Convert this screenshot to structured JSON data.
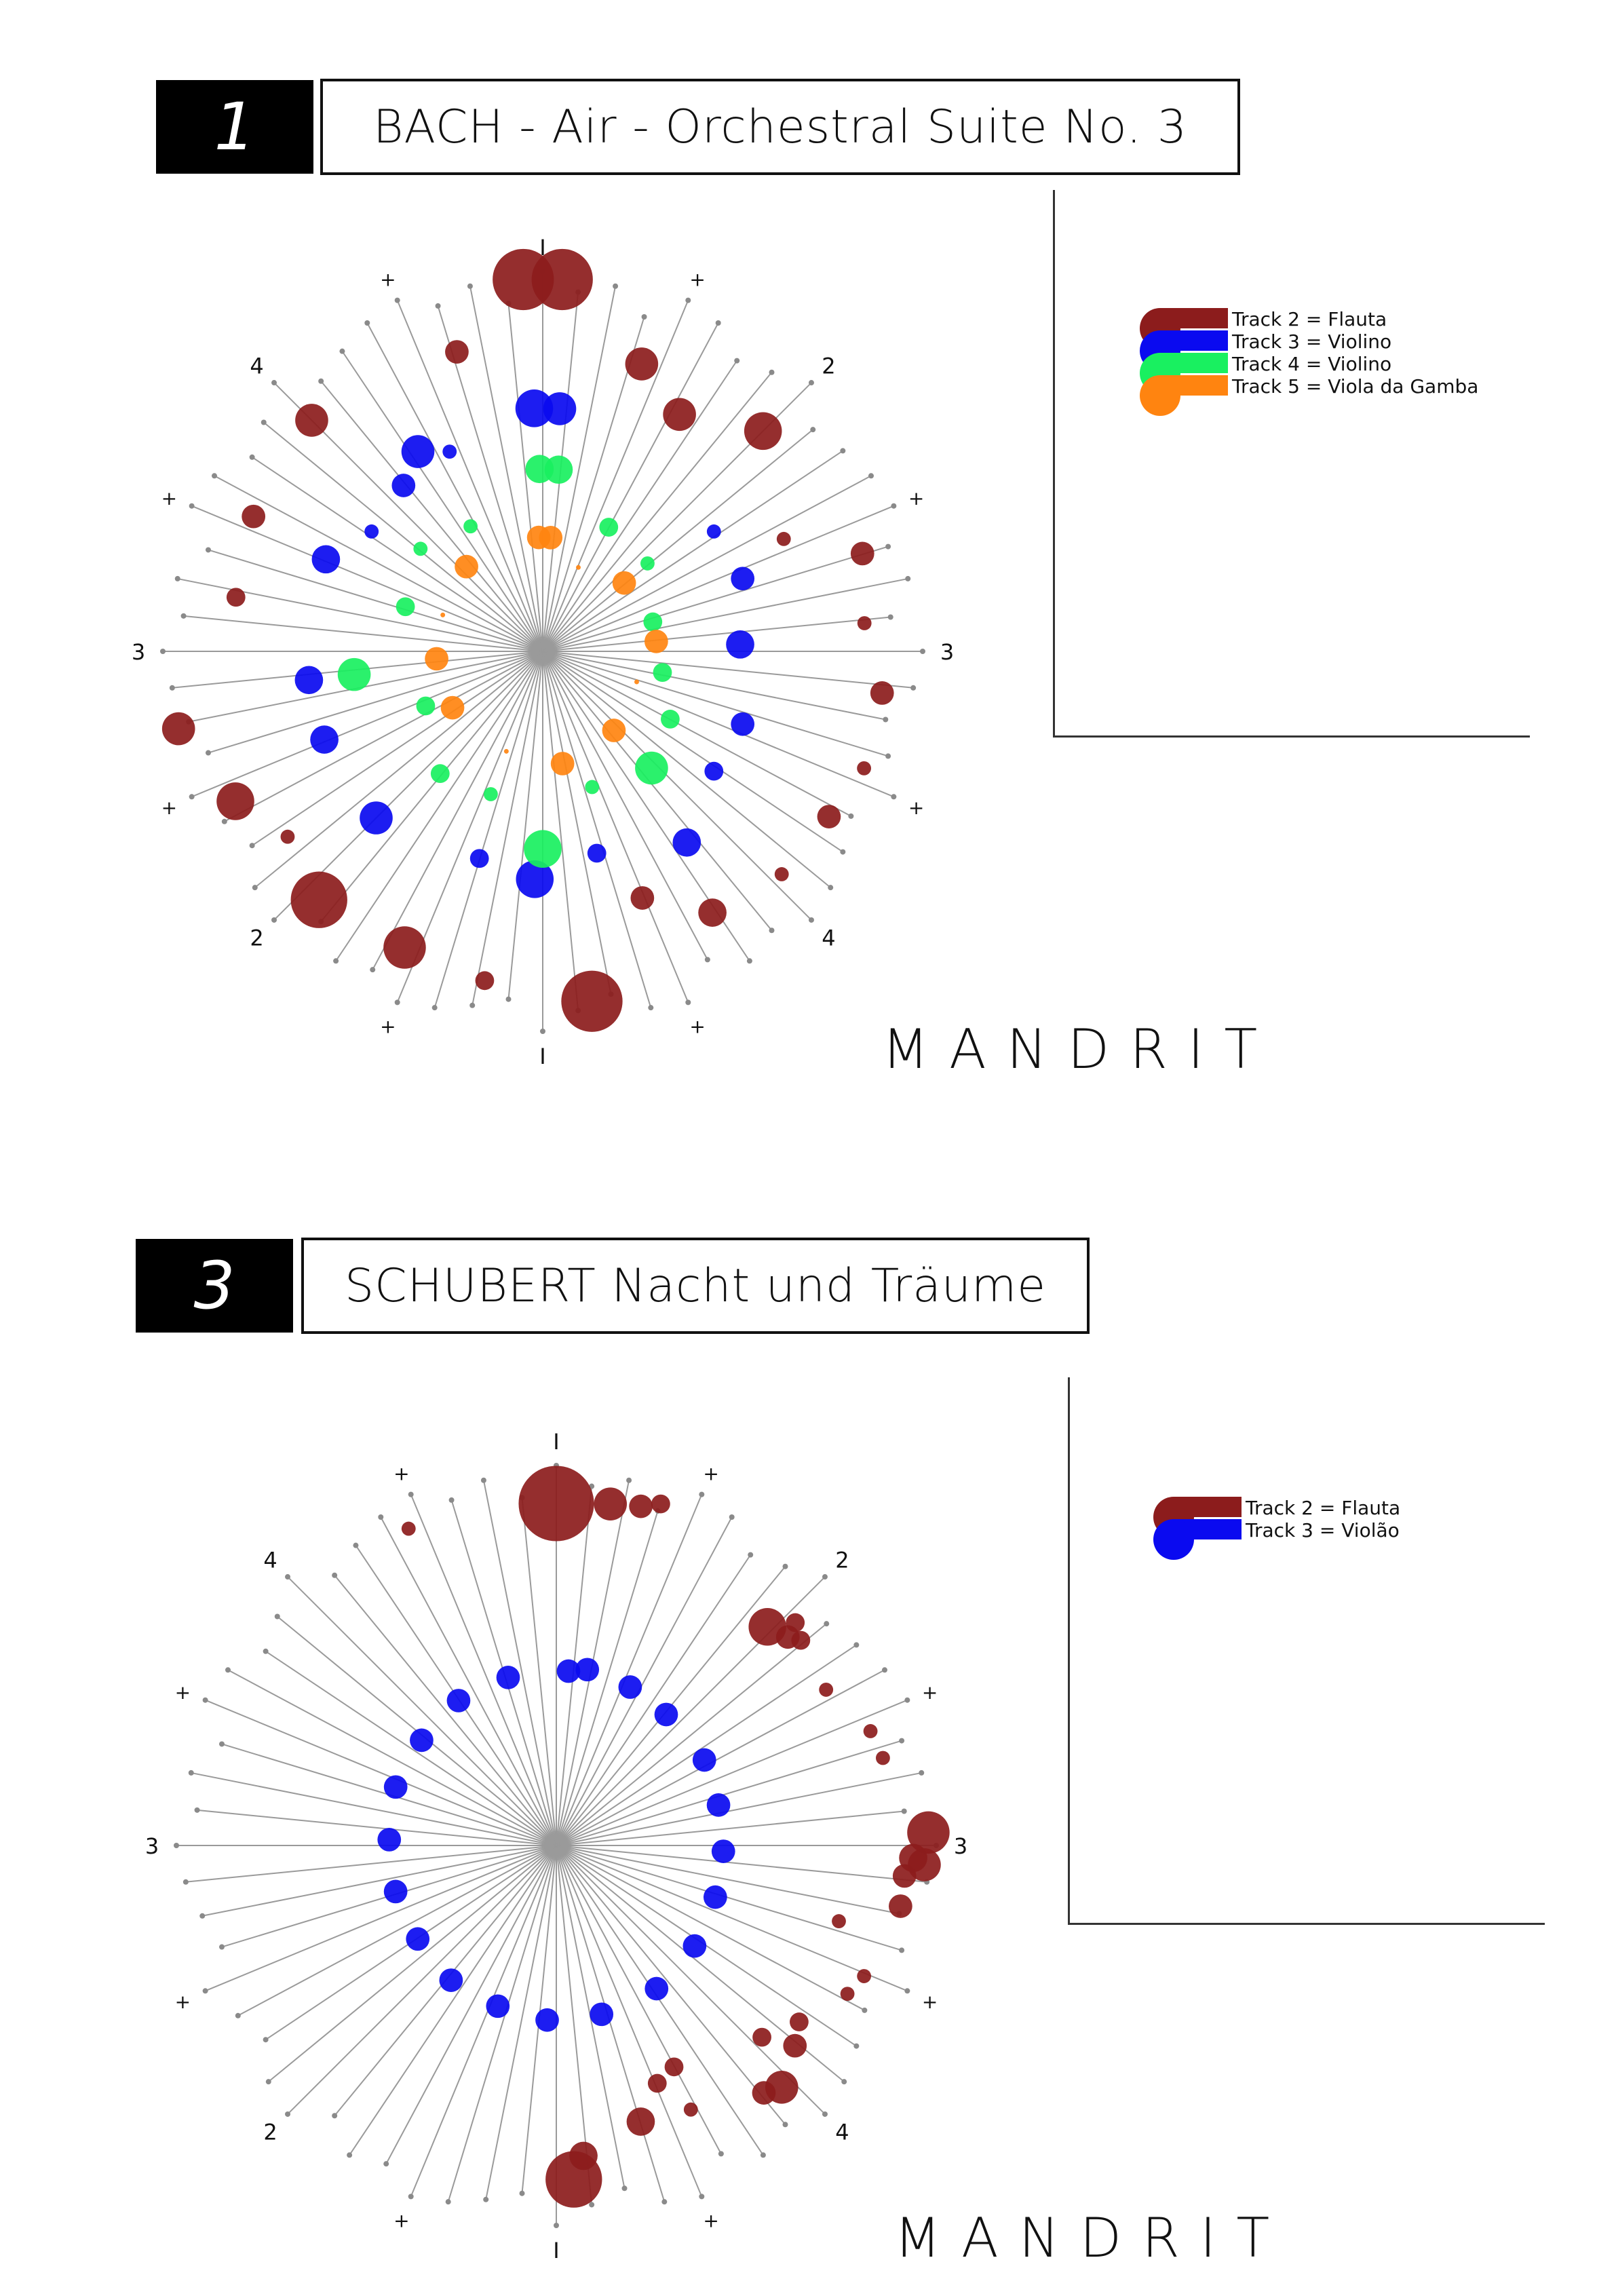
{
  "brand": "MANDRIT",
  "colors": {
    "flauta": "#8c1c1c",
    "violino1": "#0a0af0",
    "violino2": "#19f060",
    "gamba": "#ff8410",
    "spoke": "#9a9a9a",
    "dot": "#8a8a8a"
  },
  "charts": [
    {
      "number": "1",
      "title": "BACH - Air - Orchestral Suite No. 3",
      "beat_labels": [
        "I",
        "+",
        "2",
        "+",
        "3",
        "+",
        "4",
        "+",
        "I",
        "+",
        "2",
        "+",
        "3",
        "+",
        "4",
        "+"
      ],
      "legend": [
        {
          "label": "Track 2 = Flauta",
          "color": "#8c1c1c"
        },
        {
          "label": "Track 3 = Violino",
          "color": "#0a0af0"
        },
        {
          "label": "Track 4 = Violino",
          "color": "#19f060"
        },
        {
          "label": "Track 5 = Viola da Gamba",
          "color": "#ff8410"
        }
      ]
    },
    {
      "number": "3",
      "title": "SCHUBERT Nacht und Träume",
      "beat_labels": [
        "I",
        "+",
        "2",
        "+",
        "3",
        "+",
        "4",
        "+",
        "I",
        "+",
        "2",
        "+",
        "3",
        "+",
        "4",
        "+"
      ],
      "legend": [
        {
          "label": "Track 2 = Flauta",
          "color": "#8c1c1c"
        },
        {
          "label": "Track 3 = Violão",
          "color": "#0a0af0"
        }
      ]
    }
  ],
  "chart_data": [
    {
      "type": "scatter",
      "title": "BACH - Air - Orchestral Suite No. 3",
      "xlabel": "",
      "ylabel": "",
      "series": [
        {
          "name": "Track 2 = Flauta",
          "points": [
            [
              -3,
              0.98,
              0.13
            ],
            [
              3,
              0.98,
              0.13
            ],
            [
              -19,
              0.8,
              0.07
            ],
            [
              16,
              0.82,
              0.05
            ],
            [
              -30,
              0.72,
              0.07
            ],
            [
              -45,
              0.82,
              0.08
            ],
            [
              -65,
              0.7,
              0.03
            ],
            [
              -73,
              0.88,
              0.05
            ],
            [
              -85,
              0.85,
              0.03
            ],
            [
              -97,
              0.9,
              0.05
            ],
            [
              -110,
              0.9,
              0.03
            ],
            [
              -120,
              0.87,
              0.05
            ],
            [
              -133,
              0.86,
              0.03
            ],
            [
              -147,
              0.82,
              0.06
            ],
            [
              -158,
              0.7,
              0.05
            ],
            [
              -172,
              0.93,
              0.13
            ],
            [
              -190,
              0.88,
              0.04
            ],
            [
              -205,
              0.86,
              0.09
            ],
            [
              -222,
              0.88,
              0.12
            ],
            [
              -234,
              0.83,
              0.03
            ],
            [
              -244,
              0.9,
              0.08
            ],
            [
              -258,
              0.98,
              0.07
            ],
            [
              -280,
              0.82,
              0.04
            ],
            [
              -295,
              0.84,
              0.05
            ],
            [
              -315,
              0.86,
              0.07
            ]
          ]
        },
        {
          "name": "Track 3 = Violino",
          "points": [
            [
              -4,
              0.64,
              0.07
            ],
            [
              2,
              0.64,
              0.08
            ],
            [
              -55,
              0.55,
              0.03
            ],
            [
              -70,
              0.56,
              0.05
            ],
            [
              -88,
              0.52,
              0.06
            ],
            [
              -110,
              0.56,
              0.05
            ],
            [
              -125,
              0.55,
              0.04
            ],
            [
              -143,
              0.63,
              0.06
            ],
            [
              -165,
              0.55,
              0.04
            ],
            [
              -182,
              0.6,
              0.08
            ],
            [
              -197,
              0.57,
              0.04
            ],
            [
              -225,
              0.62,
              0.07
            ],
            [
              -248,
              0.62,
              0.06
            ],
            [
              -263,
              0.62,
              0.06
            ],
            [
              -293,
              0.62,
              0.06
            ],
            [
              -305,
              0.55,
              0.03
            ],
            [
              -320,
              0.57,
              0.05
            ],
            [
              -335,
              0.58,
              0.03
            ],
            [
              -328,
              0.62,
              0.07
            ]
          ]
        },
        {
          "name": "Track 4 = Violino",
          "points": [
            [
              -5,
              0.48,
              0.06
            ],
            [
              1,
              0.48,
              0.06
            ],
            [
              -28,
              0.37,
              0.04
            ],
            [
              -50,
              0.36,
              0.03
            ],
            [
              -75,
              0.3,
              0.04
            ],
            [
              -100,
              0.32,
              0.04
            ],
            [
              -118,
              0.38,
              0.04
            ],
            [
              -137,
              0.42,
              0.07
            ],
            [
              -160,
              0.38,
              0.03
            ],
            [
              -180,
              0.52,
              0.08
            ],
            [
              -200,
              0.4,
              0.03
            ],
            [
              -220,
              0.42,
              0.04
            ],
            [
              -245,
              0.34,
              0.04
            ],
            [
              -263,
              0.5,
              0.07
            ],
            [
              -288,
              0.38,
              0.04
            ],
            [
              -310,
              0.42,
              0.03
            ],
            [
              -330,
              0.38,
              0.03
            ]
          ]
        },
        {
          "name": "Track 5 = Viola da Gamba",
          "points": [
            [
              -4,
              0.3,
              0.05
            ],
            [
              2,
              0.3,
              0.05
            ],
            [
              -23,
              0.24,
              0.01
            ],
            [
              -50,
              0.28,
              0.05
            ],
            [
              -85,
              0.3,
              0.05
            ],
            [
              -108,
              0.26,
              0.01
            ],
            [
              -138,
              0.28,
              0.05
            ],
            [
              -170,
              0.3,
              0.05
            ],
            [
              -200,
              0.28,
              0.01
            ],
            [
              -238,
              0.28,
              0.05
            ],
            [
              -266,
              0.28,
              0.05
            ],
            [
              -290,
              0.28,
              0.01
            ],
            [
              -318,
              0.3,
              0.05
            ]
          ]
        }
      ]
    },
    {
      "type": "scatter",
      "title": "SCHUBERT Nacht und Träume",
      "xlabel": "",
      "ylabel": "",
      "series": [
        {
          "name": "Track 2 = Flauta",
          "points": [
            [
              0,
              0.9,
              0.16
            ],
            [
              -9,
              0.91,
              0.07
            ],
            [
              -14,
              0.92,
              0.05
            ],
            [
              -17,
              0.94,
              0.04
            ],
            [
              25,
              0.92,
              0.03
            ],
            [
              -44,
              0.8,
              0.08
            ],
            [
              -48,
              0.82,
              0.05
            ],
            [
              -60,
              0.82,
              0.03
            ],
            [
              -88,
              0.98,
              0.09
            ],
            [
              -93,
              0.97,
              0.07
            ],
            [
              -100,
              0.92,
              0.05
            ],
            [
              -113,
              0.88,
              0.03
            ],
            [
              -117,
              0.86,
              0.03
            ],
            [
              -137,
              0.87,
              0.07
            ],
            [
              -140,
              0.85,
              0.05
            ],
            [
              -153,
              0.78,
              0.03
            ],
            [
              -177,
              0.88,
              0.12
            ],
            [
              -175,
              0.82,
              0.06
            ],
            [
              -163,
              0.76,
              0.06
            ],
            [
              -152,
              0.66,
              0.04
            ],
            [
              -157,
              0.68,
              0.04
            ],
            [
              -130,
              0.82,
              0.05
            ],
            [
              -133,
              0.74,
              0.04
            ],
            [
              -126,
              0.79,
              0.04
            ],
            [
              -105,
              0.77,
              0.03
            ],
            [
              -95,
              0.92,
              0.05
            ],
            [
              -92,
              0.94,
              0.06
            ],
            [
              -75,
              0.89,
              0.03
            ],
            [
              -70,
              0.88,
              0.03
            ],
            [
              -50,
              0.84,
              0.04
            ],
            [
              -47,
              0.86,
              0.04
            ]
          ]
        },
        {
          "name": "Track 3 = Violão",
          "points": [
            [
              -10,
              0.47,
              0.05
            ],
            [
              -4,
              0.46,
              0.05
            ],
            [
              -25,
              0.46,
              0.05
            ],
            [
              -40,
              0.45,
              0.05
            ],
            [
              -60,
              0.45,
              0.05
            ],
            [
              -76,
              0.44,
              0.05
            ],
            [
              -92,
              0.44,
              0.05
            ],
            [
              -108,
              0.44,
              0.05
            ],
            [
              -126,
              0.45,
              0.05
            ],
            [
              -145,
              0.46,
              0.05
            ],
            [
              -165,
              0.46,
              0.05
            ],
            [
              -183,
              0.46,
              0.05
            ],
            [
              -200,
              0.45,
              0.05
            ],
            [
              -218,
              0.45,
              0.05
            ],
            [
              -236,
              0.44,
              0.05
            ],
            [
              -254,
              0.44,
              0.05
            ],
            [
              -272,
              0.44,
              0.05
            ],
            [
              -290,
              0.45,
              0.05
            ],
            [
              -308,
              0.45,
              0.05
            ],
            [
              -326,
              0.46,
              0.05
            ],
            [
              -344,
              0.46,
              0.05
            ]
          ]
        }
      ]
    }
  ]
}
